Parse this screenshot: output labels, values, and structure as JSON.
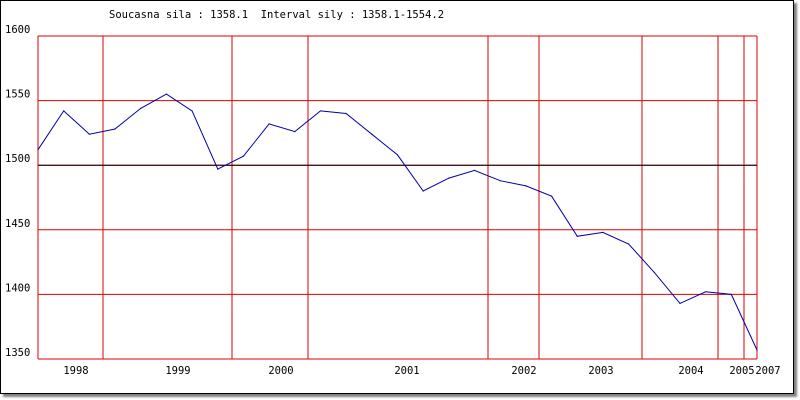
{
  "header": {
    "text": "Soucasna sila : 1358.1  Interval sily : 1358.1-1554.2"
  },
  "colors": {
    "grid": "#dd0000",
    "line": "#0000aa",
    "reference_line": "#000000",
    "axis_text": "#000000",
    "background": "#ffffff"
  },
  "chart_data": {
    "type": "line",
    "title": "Soucasna sila : 1358.1  Interval sily : 1358.1-1554.2",
    "xlabel": "",
    "ylabel": "",
    "ylim": [
      1350,
      1600
    ],
    "y_ticks": [
      1350,
      1400,
      1450,
      1500,
      1550,
      1600
    ],
    "x_ticks": [
      "1998",
      "1999",
      "2000",
      "2001",
      "2002",
      "2003",
      "2004",
      "2005",
      "2007"
    ],
    "reference_value": 1500,
    "grid": true,
    "legend": "none",
    "values": [
      1512,
      1542,
      1524,
      1528,
      1544,
      1555,
      1542,
      1497,
      1507,
      1532,
      1526,
      1542,
      1540,
      1524,
      1508,
      1480,
      1490,
      1496,
      1488,
      1484,
      1476,
      1445,
      1448,
      1439,
      1417,
      1393,
      1402,
      1400,
      1357
    ]
  }
}
